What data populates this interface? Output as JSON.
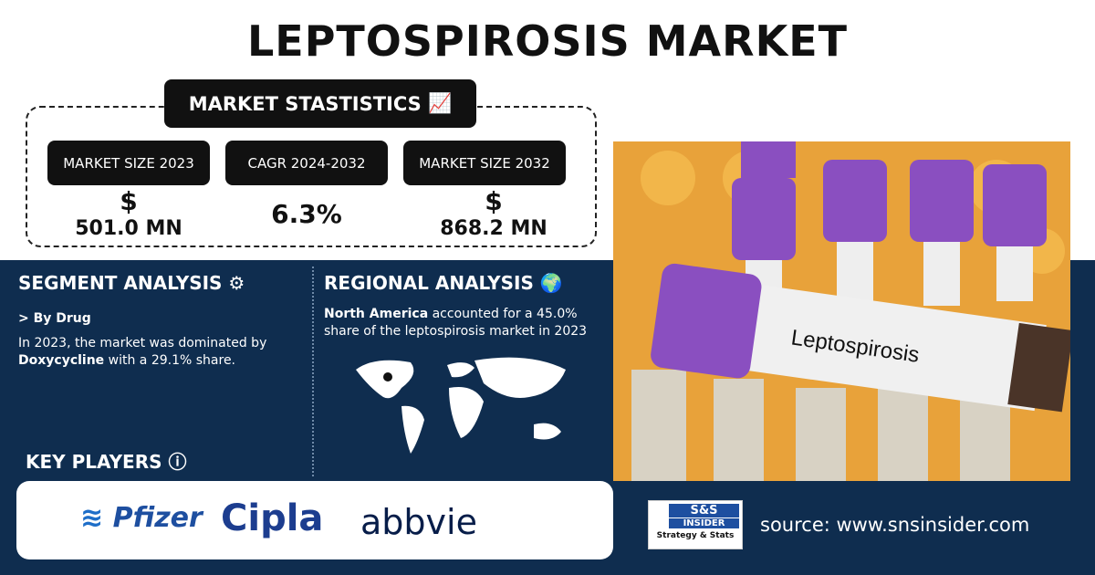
{
  "header": {
    "title": "LEPTOSPIROSIS MARKET"
  },
  "stats": {
    "heading": "MARKET STASTISTICS",
    "items": [
      {
        "label": "MARKET SIZE 2023",
        "currency": "$",
        "value": "501.0 MN"
      },
      {
        "label": "CAGR 2024-2032",
        "value": "6.3%"
      },
      {
        "label": "MARKET SIZE 2032",
        "currency": "$",
        "value": "868.2 MN"
      }
    ]
  },
  "segment": {
    "heading": "SEGMENT ANALYSIS",
    "subheading": "> By Drug",
    "text_before": "In 2023, the market was dominated by",
    "highlight": "Doxycycline",
    "text_after": "with a 29.1% share."
  },
  "regional": {
    "heading": "REGIONAL ANALYSIS",
    "highlight": "North America",
    "text": "accounted for a 45.0% share of the leptospirosis market in 2023"
  },
  "key_players": {
    "heading": "KEY PLAYERS",
    "players": [
      "Pfizer",
      "Cipla",
      "abbvie"
    ]
  },
  "image": {
    "tube_label": "Leptospirosis"
  },
  "footer": {
    "logo_top": "S&S",
    "logo_middle": "INSIDER",
    "logo_bottom": "Strategy & Stats",
    "source": "source: www.snsinsider.com"
  }
}
